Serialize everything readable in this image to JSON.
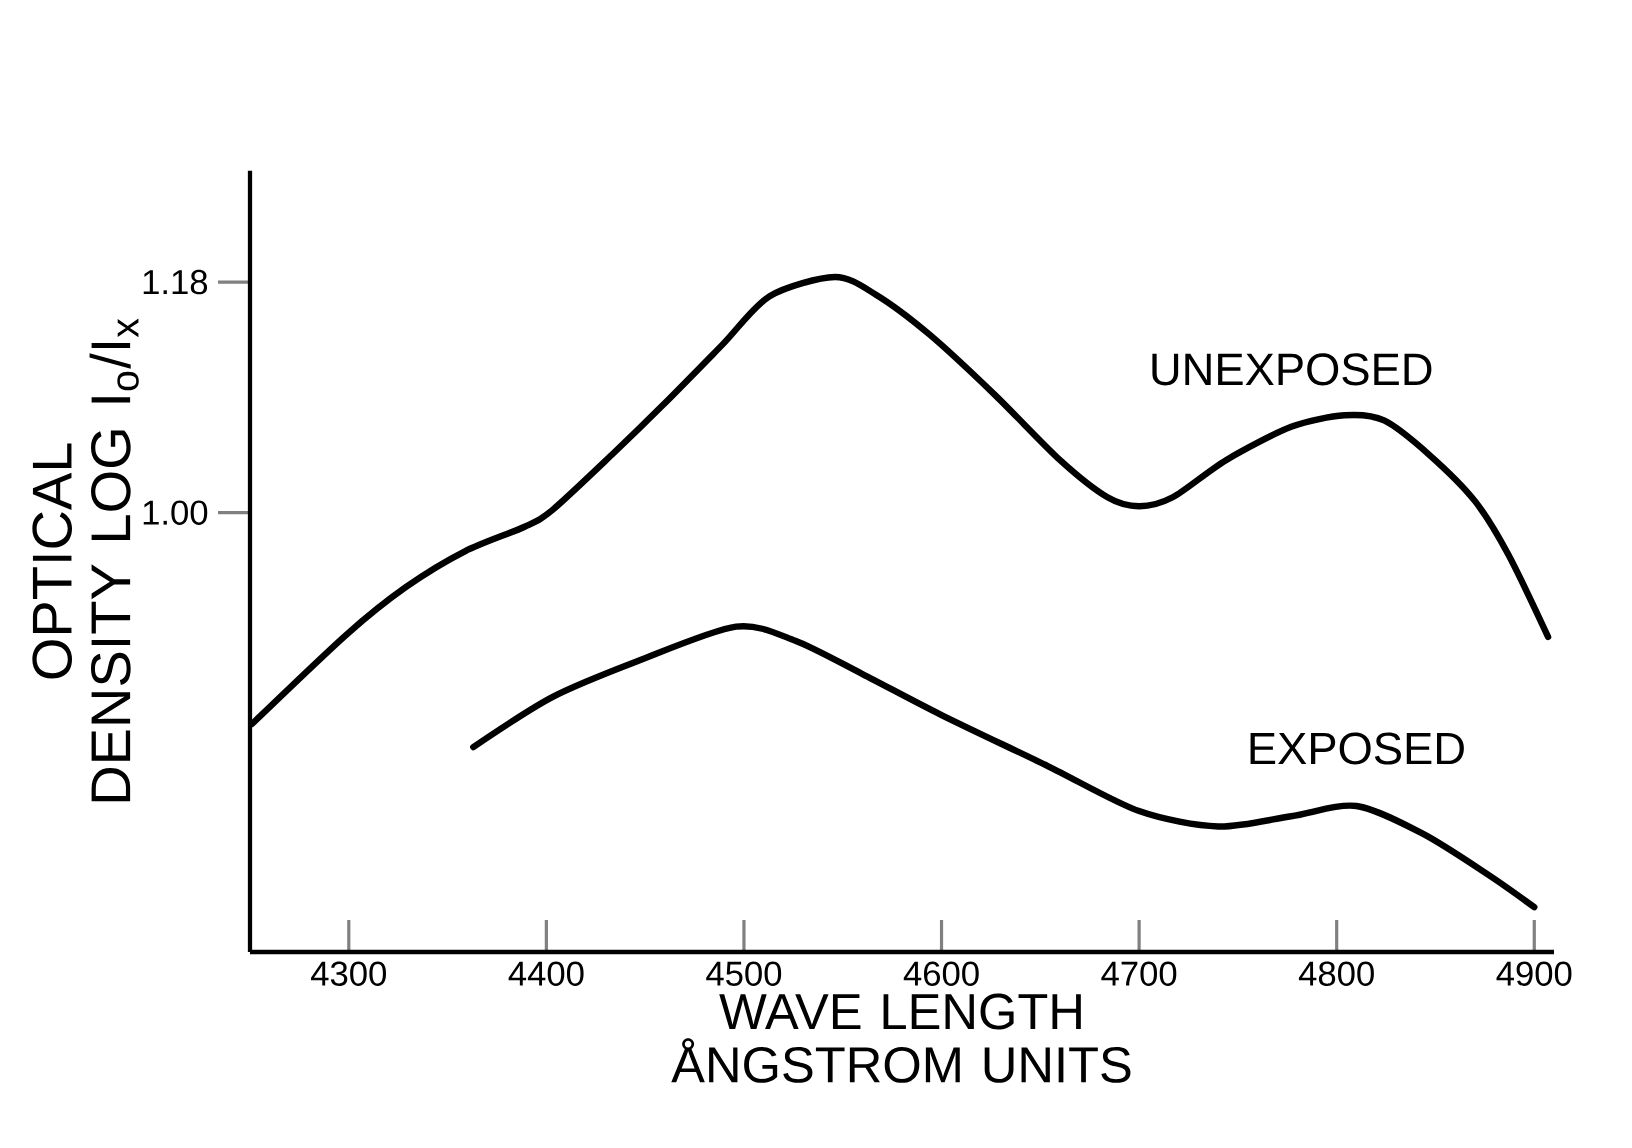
{
  "chart_data": {
    "type": "line",
    "xlabel": "WAVE LENGTH ÅNGSTROM UNITS",
    "ylabel": "OPTICAL DENSITY LOG I$_{o}$/I$_{x}$",
    "xlim": [
      4250,
      4910
    ],
    "ylim": [
      0.657,
      1.267
    ],
    "xticks": [
      4300,
      4400,
      4500,
      4600,
      4700,
      4800,
      4900
    ],
    "yticks": [
      {
        "value": 1,
        "label": "1.00"
      },
      1.18
    ],
    "marker": "none",
    "line_style": "solid",
    "series": [
      {
        "name": "UNEXPOSED",
        "color": "#000000",
        "x": [
          4251,
          4299,
          4329,
          4359,
          4389,
          4403,
          4433,
          4459,
          4489,
          4513,
          4546,
          4567,
          4594,
          4627,
          4660,
          4684,
          4700,
          4717,
          4744,
          4777,
          4804,
          4824,
          4847,
          4870,
          4887,
          4907
        ],
        "values": [
          0.835,
          0.905,
          0.942,
          0.97,
          0.989,
          1.002,
          1.045,
          1.084,
          1.131,
          1.169,
          1.184,
          1.17,
          1.139,
          1.092,
          1.041,
          1.012,
          1.005,
          1.012,
          1.041,
          1.067,
          1.076,
          1.072,
          1.045,
          1.009,
          0.967,
          0.903
        ]
      },
      {
        "name": "EXPOSED",
        "color": "#000000",
        "x": [
          4363,
          4403,
          4446,
          4496,
          4526,
          4560,
          4600,
          4654,
          4700,
          4740,
          4777,
          4810,
          4844,
          4877,
          4900
        ],
        "values": [
          0.817,
          0.856,
          0.884,
          0.911,
          0.9,
          0.874,
          0.842,
          0.802,
          0.767,
          0.755,
          0.763,
          0.771,
          0.749,
          0.717,
          0.692
        ]
      }
    ]
  }
}
